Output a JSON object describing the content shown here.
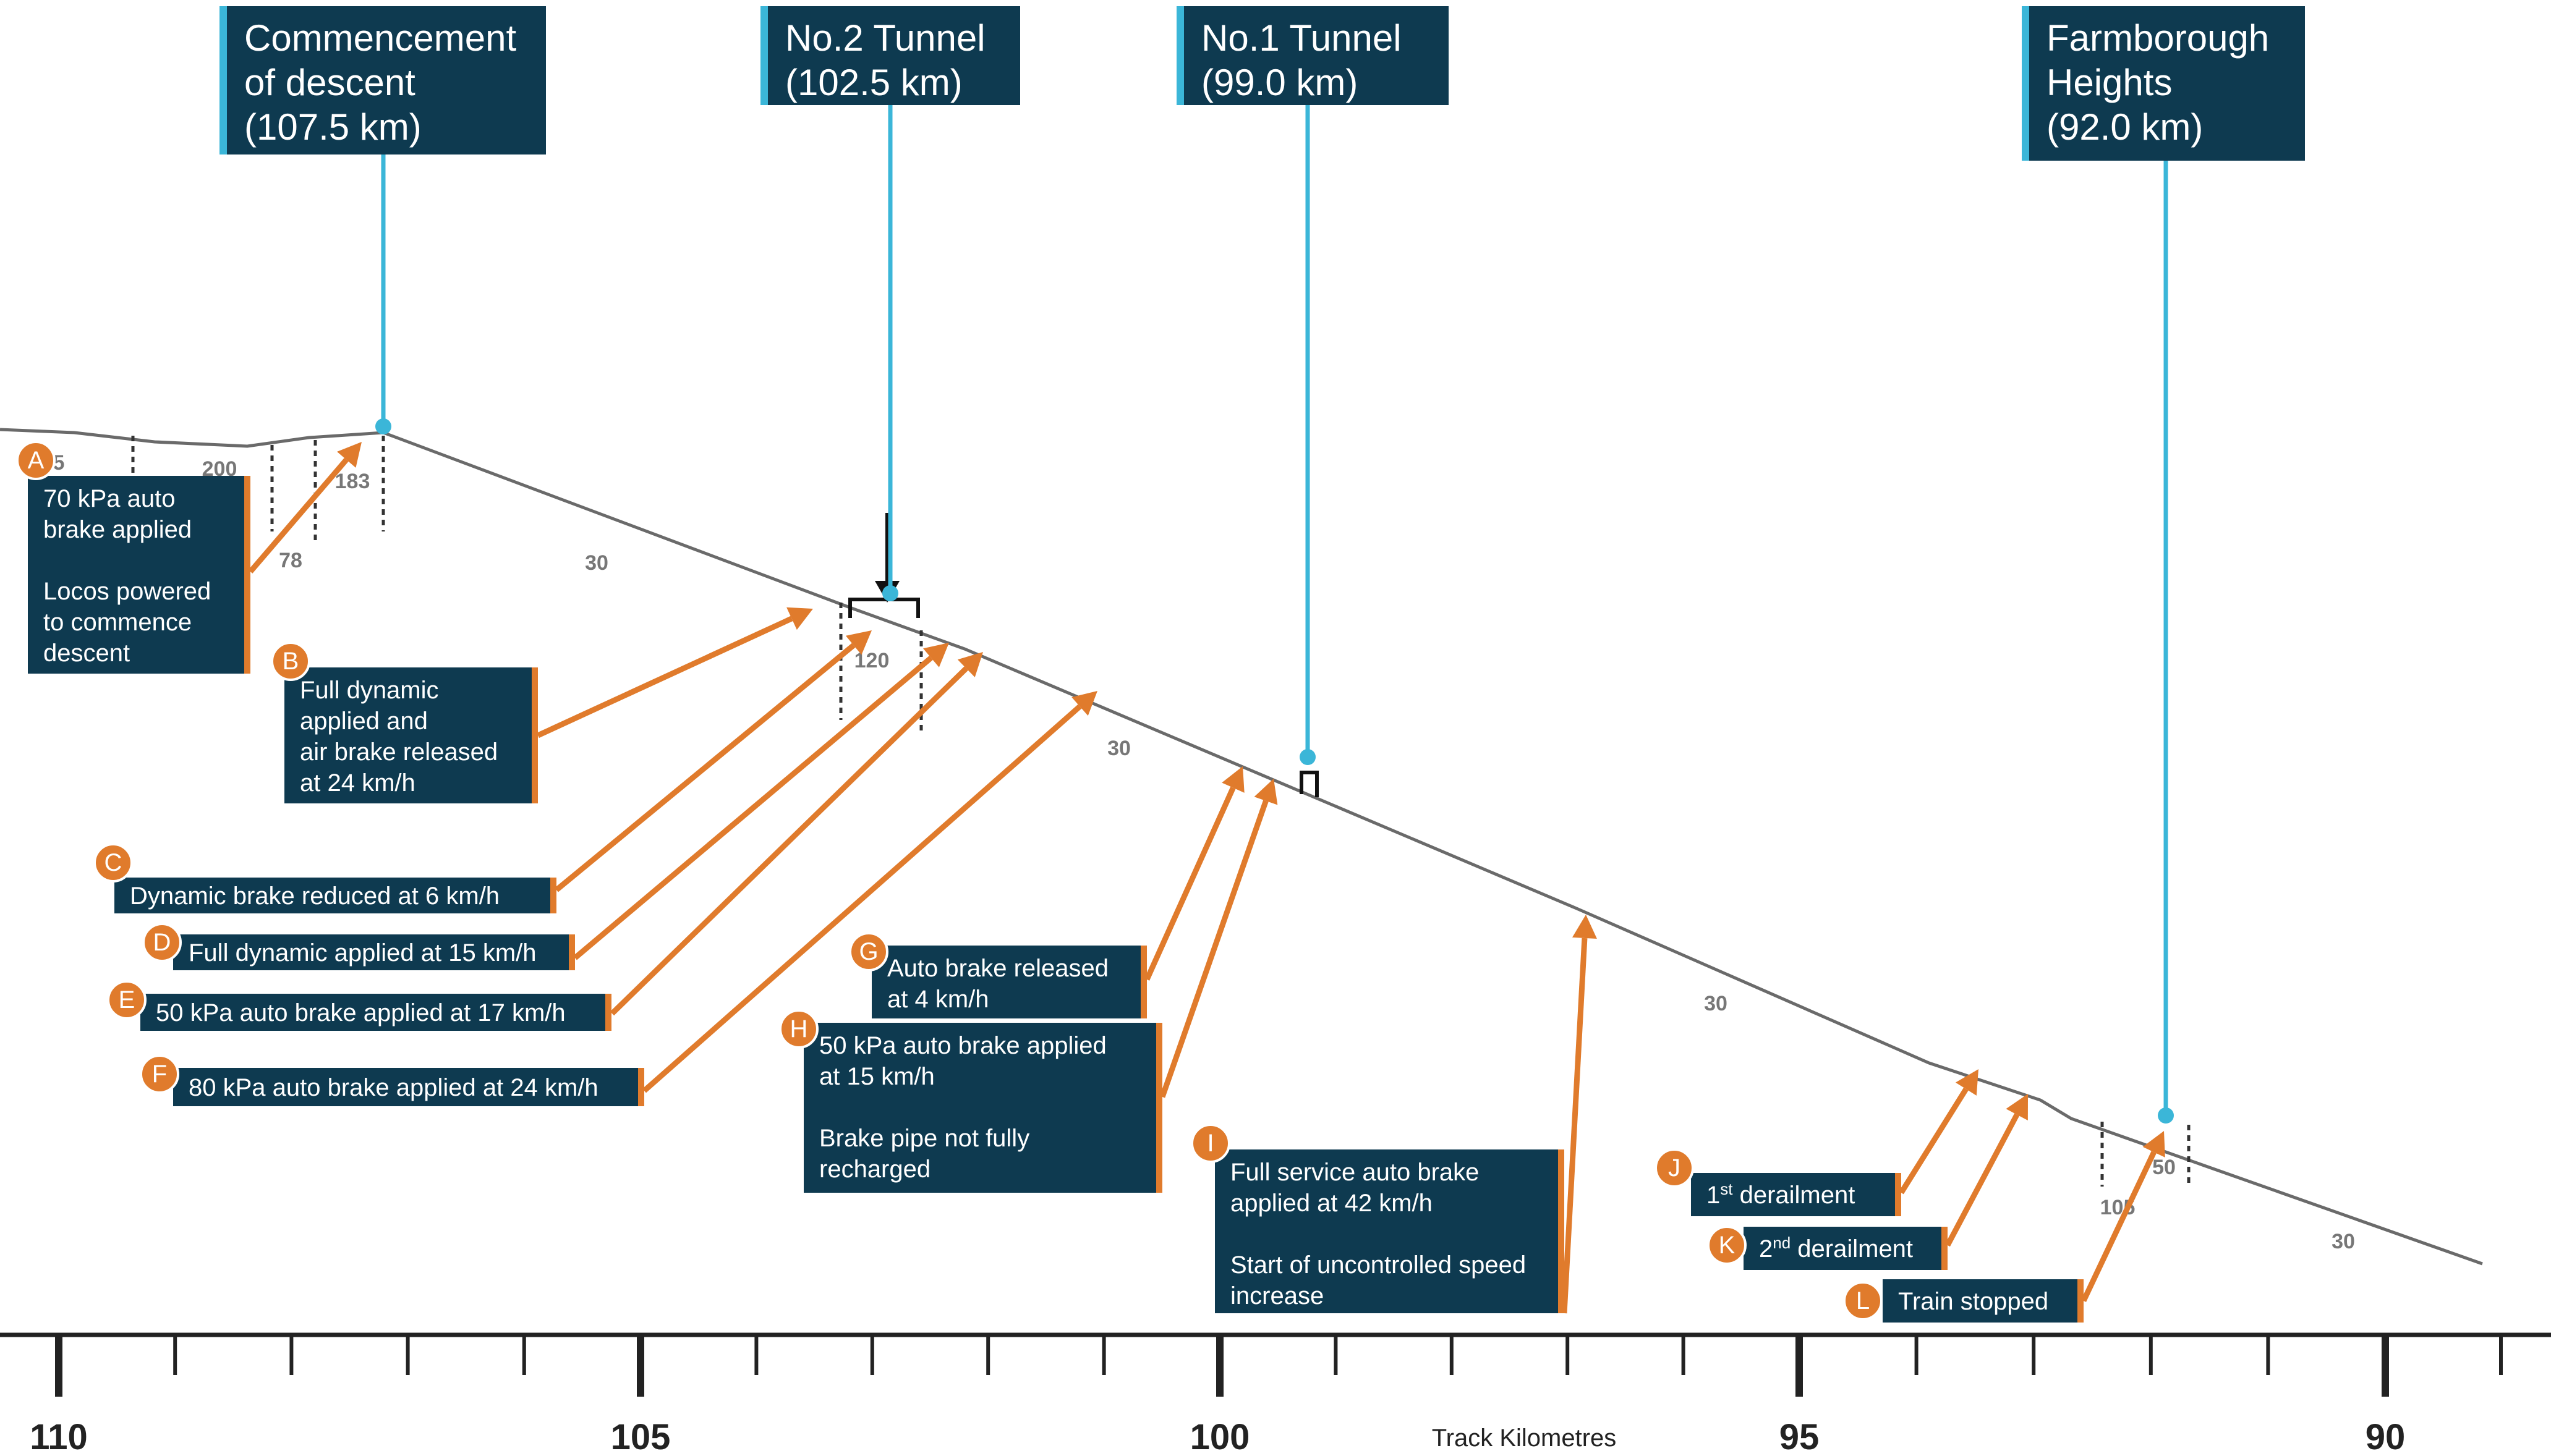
{
  "axis": {
    "title": "Track Kilometres",
    "labels": [
      "110",
      "105",
      "100",
      "95",
      "90"
    ]
  },
  "locations": [
    {
      "id": "commencement",
      "lines": [
        "Commencement",
        "of descent",
        "(107.5 km)"
      ]
    },
    {
      "id": "tunnel2",
      "lines": [
        "No.2 Tunnel",
        "(102.5 km)"
      ]
    },
    {
      "id": "tunnel1",
      "lines": [
        "No.1 Tunnel",
        "(99.0 km)"
      ]
    },
    {
      "id": "farmborough",
      "lines": [
        "Farmborough",
        "Heights",
        "(92.0 km)"
      ]
    }
  ],
  "events": [
    {
      "letter": "A",
      "lines": [
        "70 kPa auto",
        "brake applied",
        "",
        "Locos powered",
        "to commence",
        "descent"
      ]
    },
    {
      "letter": "B",
      "lines": [
        "Full dynamic",
        "applied and",
        "air brake released",
        "at 24 km/h"
      ]
    },
    {
      "letter": "C",
      "lines": [
        "Dynamic brake reduced at 6 km/h"
      ]
    },
    {
      "letter": "D",
      "lines": [
        "Full dynamic applied at 15 km/h"
      ]
    },
    {
      "letter": "E",
      "lines": [
        "50 kPa auto brake applied at 17 km/h"
      ]
    },
    {
      "letter": "F",
      "lines": [
        "80 kPa auto brake applied at 24 km/h"
      ]
    },
    {
      "letter": "G",
      "lines": [
        "Auto brake released",
        "at 4 km/h"
      ]
    },
    {
      "letter": "H",
      "lines": [
        "50 kPa auto brake applied",
        "at  15 km/h",
        "",
        "Brake pipe not fully",
        "recharged"
      ]
    },
    {
      "letter": "I",
      "lines": [
        "Full service auto brake",
        "applied at 42 km/h",
        "",
        "Start of uncontrolled speed",
        "increase"
      ]
    },
    {
      "letter": "J",
      "lines": [
        "1st derailment"
      ],
      "sup": "st"
    },
    {
      "letter": "K",
      "lines": [
        "2nd derailment"
      ],
      "sup": "nd"
    },
    {
      "letter": "L",
      "lines": [
        "Train stopped"
      ]
    }
  ],
  "grade_labels": [
    "5",
    "200",
    "183",
    "78",
    "30",
    "120",
    "30",
    "30",
    "105",
    "50",
    "30"
  ],
  "colors": {
    "box": "#0e3a50",
    "orange": "#e07b2c",
    "cyan": "#3bb6d8",
    "track": "#6a6a6a"
  }
}
